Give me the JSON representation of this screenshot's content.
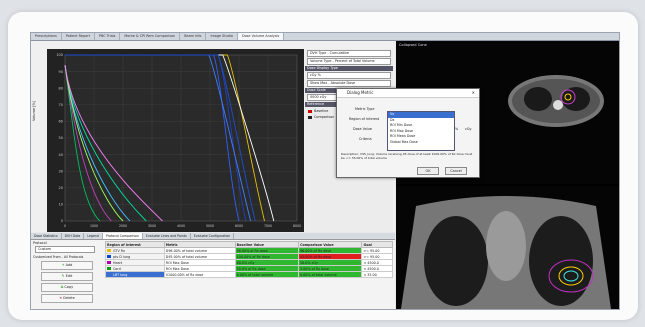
{
  "tabs": [
    "Prescriptions",
    "Patient Report",
    "PBC Trials",
    "Monte & CPI Rem Comparison",
    "Beam Info",
    "Image Studio",
    "Dose Volume Analysis"
  ],
  "active_tab": 6,
  "axes": {
    "ylabel": "Volume [%]",
    "xlabel": "Dose [cGy]"
  },
  "y_ticks": [
    "100",
    "90",
    "80",
    "70",
    "60",
    "50",
    "40",
    "30",
    "20",
    "10",
    "0"
  ],
  "x_ticks": [
    "0",
    "1000",
    "2000",
    "3000",
    "4000",
    "5000",
    "6000",
    "7000",
    "8000"
  ],
  "controls": {
    "field1": "DVH Type - Cumulative",
    "field2": "Volume Type - Percent of Total Volume",
    "header1": "Dose Display Type",
    "field3": "cGy %",
    "field4": "Show Max - Absolute Dose",
    "header2": "Dose Scale",
    "field5": "0000 cGy",
    "header3": "Reference",
    "legend1": "Baseline",
    "legend2": "Comparison"
  },
  "bottom_tabs": [
    "Dose Statistics",
    "DVH Data",
    "Legend",
    "Protocol Comparison",
    "Evaluate Lines and Points",
    "Evaluate Configuration"
  ],
  "bottom_active": 3,
  "side": {
    "protocol_label": "Protocol",
    "protocol_value": "Custom",
    "from_label": "Customized From - All Protocols",
    "buttons": [
      "Add",
      "Edit",
      "Copy",
      "Delete"
    ]
  },
  "table": {
    "headers": [
      "Region of Interest",
      "Metric",
      "Baseline Value",
      "Comparison Value",
      "Goal"
    ],
    "rows": [
      {
        "roi": "GTV Rx",
        "color": "#e8c000",
        "metric": "D98.00% of total volume",
        "base": "98.00% of Rx dose",
        "comp": "96.00% of Rx dose",
        "goal": ">= 95.00",
        "bc": "#2fb82f",
        "cc": "#2fb82f"
      },
      {
        "roi": "ptv D lung",
        "color": "#0044cc",
        "metric": "D95.00% of total volume",
        "base": "100.00% of Rx dose",
        "comp": "93.00% of Rx dose",
        "goal": ">= 95.00",
        "bc": "#2fb82f",
        "cc": "#e02020"
      },
      {
        "roi": "Heart",
        "color": "#b000b0",
        "metric": "ROI Max Dose",
        "base": "68.0% cGy",
        "comp": "50.0% cGy",
        "goal": "< 4500.0",
        "bc": "#2fb82f",
        "cc": "#2fb82f"
      },
      {
        "roi": "Cord",
        "color": "#00a000",
        "metric": "ROI Max Dose",
        "base": "50.0% of Rx dose",
        "comp": "5.00% of Rx dose",
        "goal": "< 4500.0",
        "bc": "#2fb82f",
        "cc": "#2fb82f"
      },
      {
        "roi": "LBT lung",
        "color": "#3a6fd0",
        "metric": "V1000.00% of Rx dose",
        "base": "0.00% of total volume",
        "comp": "0.00% of total volume",
        "goal": "< 35.00",
        "bc": "#2fb82f",
        "cc": "#2fb82f"
      }
    ]
  },
  "ct_top_label": "Collapsed Cone",
  "dialog": {
    "title": "Dialog Metric",
    "metric_type_label": "Metric Type",
    "roi_label": "Region of Interest",
    "dose_value_label": "Dose Value",
    "criteria_label": "Criteria",
    "list": [
      "Vx",
      "Dx",
      "ROI Min Dose",
      "ROI Max Dose",
      "ROI Mean Dose",
      "Global Max Dose"
    ],
    "selected": 0,
    "unit1": "%",
    "unit2": "cGy",
    "desc": "Description: V95_lung: Volume receiving 95 dose of at least 1000.00% of Rx dose must be <= 35.00% of total volume",
    "ok": "OK",
    "cancel": "Cancel"
  }
}
